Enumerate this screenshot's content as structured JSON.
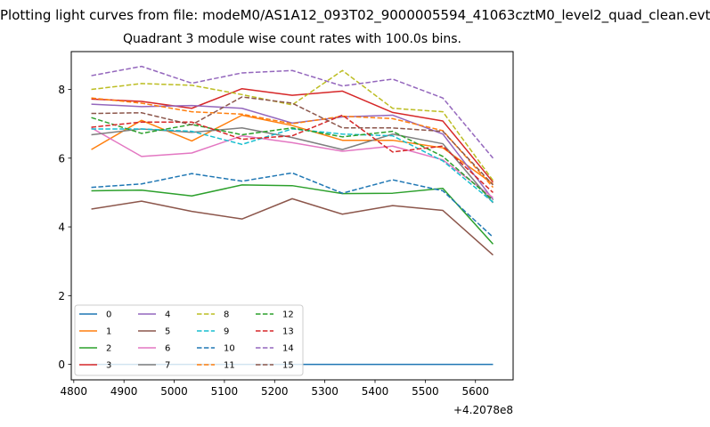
{
  "figure": {
    "suptitle": "Plotting light curves from file: modeM0/AS1A12_093T02_9000005594_41063cztM0_level2_quad_clean.evt",
    "title": "Quadrant 3 module wise count rates with 100.0s bins."
  },
  "chart_data": {
    "type": "line",
    "title": "Quadrant 3 module wise count rates with 100.0s bins.",
    "xlabel": "",
    "ylabel": "",
    "x_offset_label": "+4.2078e8",
    "x": [
      4835,
      4935,
      5035,
      5135,
      5235,
      5335,
      5435,
      5535,
      5635
    ],
    "xlim": [
      4795,
      5675
    ],
    "ylim": [
      -0.45,
      9.1
    ],
    "xticks": [
      4800,
      4900,
      5000,
      5100,
      5200,
      5300,
      5400,
      5500,
      5600
    ],
    "yticks": [
      0,
      2,
      4,
      6,
      8
    ],
    "grid": false,
    "legend_position": "lower-left",
    "series": [
      {
        "name": "0",
        "color": "#1f77b4",
        "dash": "solid",
        "values": [
          0.0,
          0.0,
          0.0,
          0.0,
          0.0,
          0.0,
          0.0,
          0.0,
          0.0
        ]
      },
      {
        "name": "1",
        "color": "#ff7f0e",
        "dash": "solid",
        "values": [
          6.25,
          7.1,
          6.5,
          7.25,
          6.95,
          6.52,
          6.52,
          6.3,
          5.25
        ]
      },
      {
        "name": "2",
        "color": "#2ca02c",
        "dash": "solid",
        "values": [
          5.05,
          5.07,
          4.9,
          5.22,
          5.2,
          4.97,
          4.98,
          5.12,
          3.5
        ]
      },
      {
        "name": "3",
        "color": "#d62728",
        "dash": "solid",
        "values": [
          7.72,
          7.65,
          7.45,
          8.02,
          7.83,
          7.95,
          7.33,
          7.08,
          5.3
        ]
      },
      {
        "name": "4",
        "color": "#9467bd",
        "dash": "solid",
        "values": [
          7.57,
          7.5,
          7.53,
          7.45,
          7.02,
          7.2,
          7.25,
          6.7,
          4.8
        ]
      },
      {
        "name": "5",
        "color": "#8c564b",
        "dash": "solid",
        "values": [
          4.52,
          4.75,
          4.45,
          4.23,
          4.82,
          4.37,
          4.62,
          4.48,
          3.18
        ]
      },
      {
        "name": "6",
        "color": "#e377c2",
        "dash": "solid",
        "values": [
          6.88,
          6.05,
          6.15,
          6.65,
          6.45,
          6.2,
          6.35,
          5.95,
          4.85
        ]
      },
      {
        "name": "7",
        "color": "#7f7f7f",
        "dash": "solid",
        "values": [
          6.68,
          6.85,
          6.75,
          6.88,
          6.6,
          6.25,
          6.7,
          6.42,
          4.7
        ]
      },
      {
        "name": "8",
        "color": "#bcbd22",
        "dash": "dashed",
        "values": [
          8.0,
          8.17,
          8.12,
          7.85,
          7.55,
          8.55,
          7.45,
          7.35,
          5.35
        ]
      },
      {
        "name": "9",
        "color": "#17becf",
        "dash": "dashed",
        "values": [
          6.85,
          6.85,
          6.78,
          6.4,
          6.85,
          6.7,
          6.65,
          5.92,
          4.72
        ]
      },
      {
        "name": "10",
        "color": "#1f77b4",
        "dash": "dashed",
        "values": [
          5.15,
          5.25,
          5.55,
          5.33,
          5.57,
          4.98,
          5.37,
          5.05,
          3.7
        ]
      },
      {
        "name": "11",
        "color": "#ff7f0e",
        "dash": "dashed",
        "values": [
          7.75,
          7.6,
          7.35,
          7.28,
          7.0,
          7.22,
          7.15,
          6.8,
          5.15
        ]
      },
      {
        "name": "12",
        "color": "#2ca02c",
        "dash": "dashed",
        "values": [
          7.18,
          6.72,
          6.98,
          6.68,
          6.88,
          6.62,
          6.78,
          6.05,
          4.78
        ]
      },
      {
        "name": "13",
        "color": "#d62728",
        "dash": "dashed",
        "values": [
          6.9,
          7.05,
          7.05,
          6.55,
          6.65,
          7.25,
          6.18,
          6.35,
          5.0
        ]
      },
      {
        "name": "14",
        "color": "#9467bd",
        "dash": "dashed",
        "values": [
          8.4,
          8.67,
          8.18,
          8.48,
          8.55,
          8.1,
          8.3,
          7.75,
          6.0
        ]
      },
      {
        "name": "15",
        "color": "#8c564b",
        "dash": "dashed",
        "values": [
          7.3,
          7.32,
          6.97,
          7.78,
          7.6,
          6.88,
          6.88,
          6.78,
          5.22
        ]
      }
    ]
  }
}
